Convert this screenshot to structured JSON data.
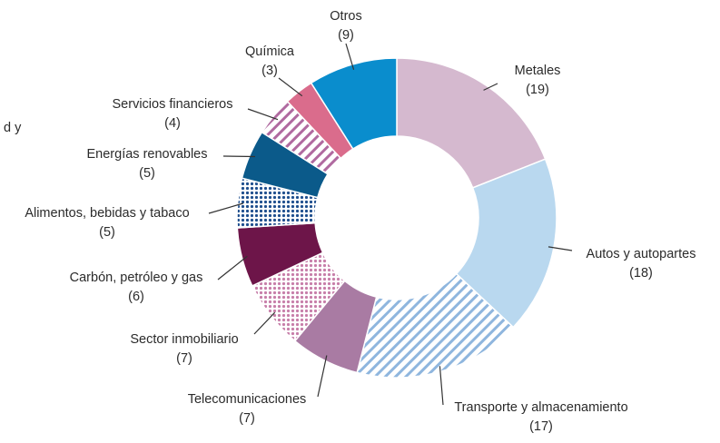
{
  "side_text": "d y",
  "chart_data": {
    "type": "donut",
    "categories": [
      "Metales",
      "Autos y autopartes",
      "Transporte y almacenamiento",
      "Telecomunicaciones",
      "Sector inmobiliario",
      "Carbón, petróleo y gas",
      "Alimentos, bebidas y tabaco",
      "Energías renovables",
      "Servicios financieros",
      "Química",
      "Otros"
    ],
    "values": [
      19,
      18,
      17,
      7,
      7,
      6,
      5,
      5,
      4,
      3,
      9
    ],
    "value_labels": [
      "(19)",
      "(18)",
      "(17)",
      "(7)",
      "(7)",
      "(6)",
      "(5)",
      "(5)",
      "(4)",
      "(3)",
      "(9)"
    ],
    "colors": [
      "#d5b9cf",
      "#b9d8ef",
      "#8fb6de",
      "#a97ba3",
      "#c77ea9",
      "#6d1549",
      "#1f4f8e",
      "#0b5a8a",
      "#b06aa0",
      "#da6c8c",
      "#0a8dcd"
    ],
    "patterns": [
      "solid",
      "solid",
      "hatch",
      "solid",
      "dots",
      "solid",
      "dots",
      "solid",
      "hatch",
      "solid",
      "solid"
    ]
  }
}
